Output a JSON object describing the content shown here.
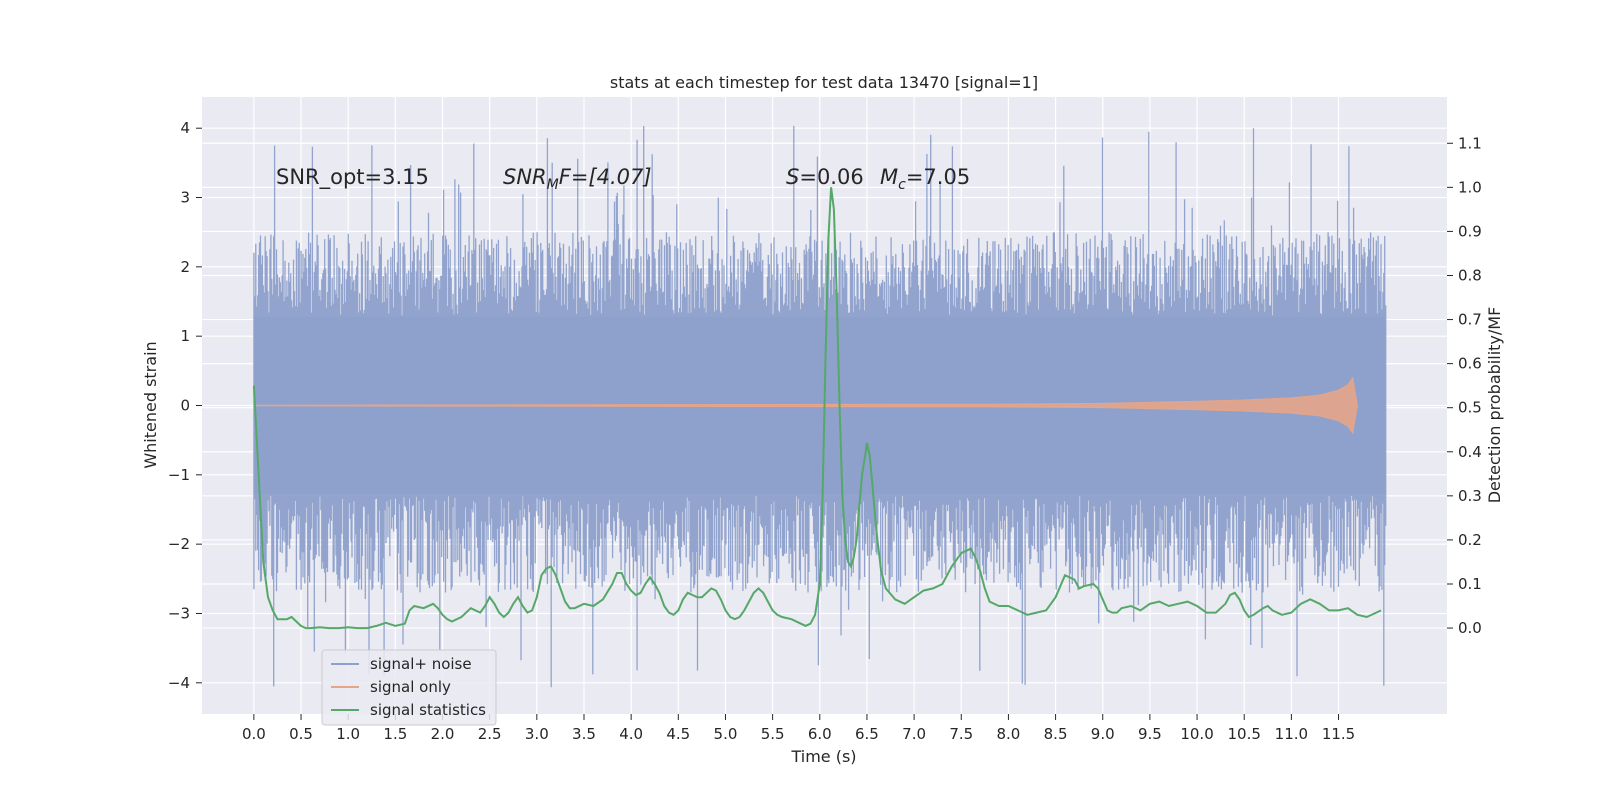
{
  "chart_data": {
    "type": "line",
    "title": "stats at each timestep for test data 13470 [signal=1]",
    "xlabel": "Time (s)",
    "ylabel_left": "Whitened strain",
    "ylabel_right": "Detection probability/MF",
    "xlim": [
      -0.55,
      12.65
    ],
    "ylim_left": [
      -4.45,
      4.45
    ],
    "ylim_right": [
      -0.195,
      1.205
    ],
    "x_ticks": [
      "0.0",
      "0.5",
      "1.0",
      "1.5",
      "2.0",
      "2.5",
      "3.0",
      "3.5",
      "4.0",
      "4.5",
      "5.0",
      "5.5",
      "6.0",
      "6.5",
      "7.0",
      "7.5",
      "8.0",
      "8.5",
      "9.0",
      "9.5",
      "10.0",
      "10.5",
      "11.0",
      "11.5"
    ],
    "y_ticks_left": [
      "4",
      "3",
      "2",
      "1",
      "0",
      "−1",
      "−2",
      "−3",
      "−4"
    ],
    "y_ticks_right": [
      "1.1",
      "1.0",
      "0.9",
      "0.8",
      "0.7",
      "0.6",
      "0.5",
      "0.4",
      "0.3",
      "0.2",
      "0.1",
      "0.0"
    ],
    "grid": true,
    "legend_position": "lower-left",
    "annotations": {
      "snr_opt": "SNR_opt=3.15",
      "snr_mf_base": "SNR",
      "snr_mf_sub": "M",
      "snr_mf_rest": "F=[4.07]",
      "s_italic": "S",
      "s_value": "=0.06",
      "mc_base": "M",
      "mc_sub": "c",
      "mc_value": "=7.05"
    },
    "series": [
      {
        "name": "signal+ noise",
        "color": "#8da0cb",
        "axis": "left",
        "description": "whitened noisy strain, dense samples from 0.0 to 12.0 s",
        "x_range": [
          0.0,
          12.0
        ],
        "typical_peak": 2.0,
        "max": 4.05,
        "min": -4.1
      },
      {
        "name": "signal only",
        "color": "#e5a58a",
        "axis": "left",
        "description": "chirp signal envelope growing to merger",
        "points": [
          [
            0.0,
            0.005
          ],
          [
            8.0,
            0.02
          ],
          [
            9.0,
            0.03
          ],
          [
            10.0,
            0.06
          ],
          [
            10.5,
            0.08
          ],
          [
            11.0,
            0.11
          ],
          [
            11.3,
            0.15
          ],
          [
            11.5,
            0.22
          ],
          [
            11.6,
            0.3
          ],
          [
            11.65,
            0.4
          ],
          [
            11.7,
            0.0
          ]
        ]
      },
      {
        "name": "signal statistics",
        "color": "#55a868",
        "axis": "right",
        "points": [
          [
            0.0,
            0.55
          ],
          [
            0.05,
            0.35
          ],
          [
            0.1,
            0.15
          ],
          [
            0.15,
            0.07
          ],
          [
            0.2,
            0.04
          ],
          [
            0.25,
            0.02
          ],
          [
            0.3,
            0.02
          ],
          [
            0.35,
            0.02
          ],
          [
            0.4,
            0.025
          ],
          [
            0.45,
            0.015
          ],
          [
            0.5,
            0.005
          ],
          [
            0.55,
            0.0
          ],
          [
            0.6,
            0.0
          ],
          [
            0.7,
            0.002
          ],
          [
            0.8,
            0.0
          ],
          [
            0.9,
            0.0
          ],
          [
            1.0,
            0.002
          ],
          [
            1.1,
            0.0
          ],
          [
            1.2,
            0.0
          ],
          [
            1.3,
            0.005
          ],
          [
            1.4,
            0.012
          ],
          [
            1.5,
            0.005
          ],
          [
            1.6,
            0.01
          ],
          [
            1.65,
            0.04
          ],
          [
            1.7,
            0.05
          ],
          [
            1.8,
            0.045
          ],
          [
            1.9,
            0.055
          ],
          [
            1.95,
            0.045
          ],
          [
            2.0,
            0.03
          ],
          [
            2.05,
            0.02
          ],
          [
            2.1,
            0.015
          ],
          [
            2.2,
            0.025
          ],
          [
            2.3,
            0.045
          ],
          [
            2.4,
            0.035
          ],
          [
            2.45,
            0.05
          ],
          [
            2.5,
            0.07
          ],
          [
            2.55,
            0.055
          ],
          [
            2.6,
            0.035
          ],
          [
            2.65,
            0.025
          ],
          [
            2.7,
            0.035
          ],
          [
            2.75,
            0.055
          ],
          [
            2.8,
            0.07
          ],
          [
            2.85,
            0.05
          ],
          [
            2.9,
            0.035
          ],
          [
            2.95,
            0.04
          ],
          [
            3.0,
            0.07
          ],
          [
            3.05,
            0.12
          ],
          [
            3.1,
            0.135
          ],
          [
            3.15,
            0.14
          ],
          [
            3.2,
            0.12
          ],
          [
            3.25,
            0.09
          ],
          [
            3.3,
            0.06
          ],
          [
            3.35,
            0.045
          ],
          [
            3.4,
            0.045
          ],
          [
            3.5,
            0.055
          ],
          [
            3.6,
            0.05
          ],
          [
            3.7,
            0.065
          ],
          [
            3.8,
            0.1
          ],
          [
            3.85,
            0.125
          ],
          [
            3.9,
            0.125
          ],
          [
            3.95,
            0.1
          ],
          [
            4.0,
            0.085
          ],
          [
            4.05,
            0.075
          ],
          [
            4.1,
            0.08
          ],
          [
            4.15,
            0.1
          ],
          [
            4.2,
            0.115
          ],
          [
            4.25,
            0.1
          ],
          [
            4.3,
            0.08
          ],
          [
            4.35,
            0.05
          ],
          [
            4.4,
            0.035
          ],
          [
            4.45,
            0.03
          ],
          [
            4.5,
            0.04
          ],
          [
            4.55,
            0.065
          ],
          [
            4.6,
            0.08
          ],
          [
            4.65,
            0.075
          ],
          [
            4.7,
            0.07
          ],
          [
            4.75,
            0.07
          ],
          [
            4.8,
            0.08
          ],
          [
            4.85,
            0.09
          ],
          [
            4.9,
            0.085
          ],
          [
            4.95,
            0.065
          ],
          [
            5.0,
            0.04
          ],
          [
            5.05,
            0.025
          ],
          [
            5.1,
            0.02
          ],
          [
            5.15,
            0.025
          ],
          [
            5.2,
            0.04
          ],
          [
            5.25,
            0.06
          ],
          [
            5.3,
            0.08
          ],
          [
            5.35,
            0.09
          ],
          [
            5.4,
            0.08
          ],
          [
            5.45,
            0.06
          ],
          [
            5.5,
            0.04
          ],
          [
            5.55,
            0.03
          ],
          [
            5.6,
            0.025
          ],
          [
            5.7,
            0.02
          ],
          [
            5.8,
            0.01
          ],
          [
            5.85,
            0.005
          ],
          [
            5.9,
            0.01
          ],
          [
            5.95,
            0.03
          ],
          [
            6.0,
            0.1
          ],
          [
            6.03,
            0.3
          ],
          [
            6.06,
            0.6
          ],
          [
            6.09,
            0.88
          ],
          [
            6.12,
            1.0
          ],
          [
            6.15,
            0.95
          ],
          [
            6.18,
            0.75
          ],
          [
            6.21,
            0.5
          ],
          [
            6.24,
            0.3
          ],
          [
            6.27,
            0.2
          ],
          [
            6.3,
            0.15
          ],
          [
            6.33,
            0.14
          ],
          [
            6.36,
            0.16
          ],
          [
            6.39,
            0.2
          ],
          [
            6.42,
            0.28
          ],
          [
            6.45,
            0.35
          ],
          [
            6.48,
            0.39
          ],
          [
            6.5,
            0.42
          ],
          [
            6.53,
            0.39
          ],
          [
            6.56,
            0.32
          ],
          [
            6.6,
            0.22
          ],
          [
            6.65,
            0.13
          ],
          [
            6.7,
            0.09
          ],
          [
            6.8,
            0.065
          ],
          [
            6.9,
            0.055
          ],
          [
            7.0,
            0.07
          ],
          [
            7.1,
            0.085
          ],
          [
            7.2,
            0.09
          ],
          [
            7.3,
            0.1
          ],
          [
            7.4,
            0.14
          ],
          [
            7.5,
            0.17
          ],
          [
            7.6,
            0.18
          ],
          [
            7.65,
            0.16
          ],
          [
            7.7,
            0.13
          ],
          [
            7.75,
            0.09
          ],
          [
            7.8,
            0.06
          ],
          [
            7.9,
            0.05
          ],
          [
            8.0,
            0.05
          ],
          [
            8.1,
            0.04
          ],
          [
            8.2,
            0.03
          ],
          [
            8.3,
            0.035
          ],
          [
            8.4,
            0.04
          ],
          [
            8.5,
            0.07
          ],
          [
            8.6,
            0.12
          ],
          [
            8.7,
            0.11
          ],
          [
            8.75,
            0.09
          ],
          [
            8.8,
            0.095
          ],
          [
            8.9,
            0.1
          ],
          [
            8.95,
            0.09
          ],
          [
            9.0,
            0.065
          ],
          [
            9.05,
            0.04
          ],
          [
            9.1,
            0.035
          ],
          [
            9.15,
            0.035
          ],
          [
            9.2,
            0.045
          ],
          [
            9.3,
            0.05
          ],
          [
            9.4,
            0.04
          ],
          [
            9.5,
            0.055
          ],
          [
            9.6,
            0.06
          ],
          [
            9.7,
            0.05
          ],
          [
            9.8,
            0.055
          ],
          [
            9.9,
            0.06
          ],
          [
            10.0,
            0.05
          ],
          [
            10.1,
            0.035
          ],
          [
            10.2,
            0.035
          ],
          [
            10.3,
            0.055
          ],
          [
            10.35,
            0.075
          ],
          [
            10.4,
            0.08
          ],
          [
            10.45,
            0.065
          ],
          [
            10.5,
            0.04
          ],
          [
            10.55,
            0.025
          ],
          [
            10.6,
            0.03
          ],
          [
            10.7,
            0.045
          ],
          [
            10.75,
            0.05
          ],
          [
            10.8,
            0.04
          ],
          [
            10.9,
            0.03
          ],
          [
            11.0,
            0.035
          ],
          [
            11.1,
            0.055
          ],
          [
            11.2,
            0.065
          ],
          [
            11.3,
            0.055
          ],
          [
            11.4,
            0.04
          ],
          [
            11.5,
            0.04
          ],
          [
            11.6,
            0.045
          ],
          [
            11.7,
            0.03
          ],
          [
            11.8,
            0.025
          ],
          [
            11.9,
            0.035
          ],
          [
            11.95,
            0.04
          ]
        ]
      }
    ]
  }
}
